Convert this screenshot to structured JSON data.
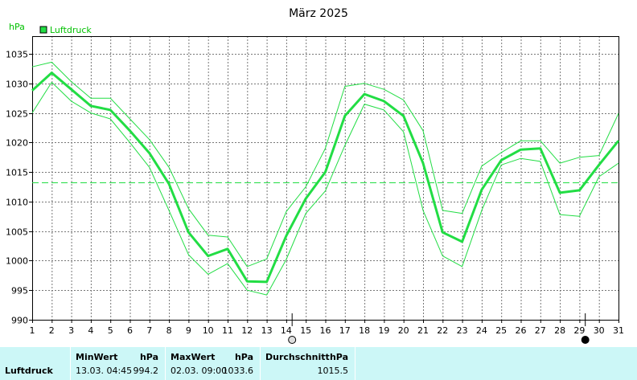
{
  "chart_data": {
    "type": "line",
    "title": "März 2025",
    "ylabel": "hPa",
    "legend": [
      {
        "name": "Luftdruck",
        "color": "#22dd44"
      }
    ],
    "legend_position": "top-left",
    "grid": true,
    "x_ticks": [
      "1",
      "2",
      "3",
      "4",
      "5",
      "6",
      "7",
      "8",
      "9",
      "10",
      "11",
      "12",
      "13",
      "14",
      "15",
      "16",
      "17",
      "18",
      "19",
      "20",
      "21",
      "22",
      "23",
      "24",
      "25",
      "26",
      "27",
      "28",
      "29",
      "30",
      "31"
    ],
    "y_ticks": [
      "990",
      "995",
      "1000",
      "1005",
      "1010",
      "1015",
      "1020",
      "1025",
      "1030",
      "1035"
    ],
    "xlim": [
      1,
      31
    ],
    "ylim": [
      990,
      1038
    ],
    "average_line": 1013.2,
    "moon_markers": [
      {
        "x": 14.3,
        "phase": "full"
      },
      {
        "x": 29.3,
        "phase": "new"
      }
    ],
    "series": [
      {
        "name": "Luftdruck",
        "role": "mean",
        "color": "#22dd44",
        "x": [
          1,
          2,
          3,
          4,
          5,
          6,
          7,
          8,
          9,
          10,
          11,
          12,
          13,
          14,
          15,
          16,
          17,
          18,
          19,
          20,
          21,
          22,
          23,
          24,
          25,
          26,
          27,
          28,
          29,
          30,
          31
        ],
        "values": [
          1028.8,
          1031.8,
          1029.0,
          1026.2,
          1025.5,
          1022.0,
          1018.2,
          1013.0,
          1004.8,
          1000.8,
          1002.0,
          996.5,
          996.4,
          1004.2,
          1010.5,
          1015.0,
          1024.5,
          1028.2,
          1027.0,
          1024.5,
          1016.5,
          1004.8,
          1003.2,
          1012.0,
          1017.0,
          1018.8,
          1019.0,
          1011.5,
          1011.9,
          1016.2,
          1020.3
        ]
      },
      {
        "name": "Luftdruck max",
        "role": "max",
        "color": "#22dd44",
        "x": [
          1,
          2,
          3,
          4,
          5,
          6,
          7,
          8,
          9,
          10,
          11,
          12,
          13,
          14,
          15,
          16,
          17,
          18,
          19,
          20,
          21,
          22,
          23,
          24,
          25,
          26,
          27,
          28,
          29,
          30,
          31
        ],
        "values": [
          1032.8,
          1033.6,
          1030.3,
          1027.5,
          1027.5,
          1024.0,
          1020.5,
          1015.8,
          1008.8,
          1004.3,
          1004.0,
          999.0,
          1000.3,
          1008.3,
          1012.5,
          1019.0,
          1029.5,
          1030.0,
          1029.0,
          1027.2,
          1022.0,
          1008.5,
          1008.0,
          1016.0,
          1018.3,
          1020.3,
          1020.3,
          1016.5,
          1017.5,
          1017.8,
          1024.9
        ]
      },
      {
        "name": "Luftdruck min",
        "role": "min",
        "color": "#22dd44",
        "x": [
          1,
          2,
          3,
          4,
          5,
          6,
          7,
          8,
          9,
          10,
          11,
          12,
          13,
          14,
          15,
          16,
          17,
          18,
          19,
          20,
          21,
          22,
          23,
          24,
          25,
          26,
          27,
          28,
          29,
          30,
          31
        ],
        "values": [
          1025.0,
          1030.2,
          1027.0,
          1025.0,
          1024.0,
          1020.0,
          1015.8,
          1008.5,
          1001.0,
          997.7,
          999.5,
          995.0,
          994.2,
          1000.2,
          1008.0,
          1011.8,
          1019.5,
          1026.5,
          1025.5,
          1021.8,
          1008.5,
          1000.8,
          999.0,
          1008.5,
          1016.2,
          1017.3,
          1016.8,
          1007.8,
          1007.5,
          1014.2,
          1016.5
        ]
      }
    ]
  },
  "stats": {
    "row_label": "Luftdruck",
    "min": {
      "header": "MinWert",
      "unit": "hPa",
      "when": "13.03.  04:45",
      "value": "994.2"
    },
    "max": {
      "header": "MaxWert",
      "unit": "hPa",
      "when": "02.03.  09:00",
      "value": "1033.6"
    },
    "avg": {
      "header": "Durchschnitt",
      "unit": "hPa",
      "value": "1015.5"
    }
  }
}
